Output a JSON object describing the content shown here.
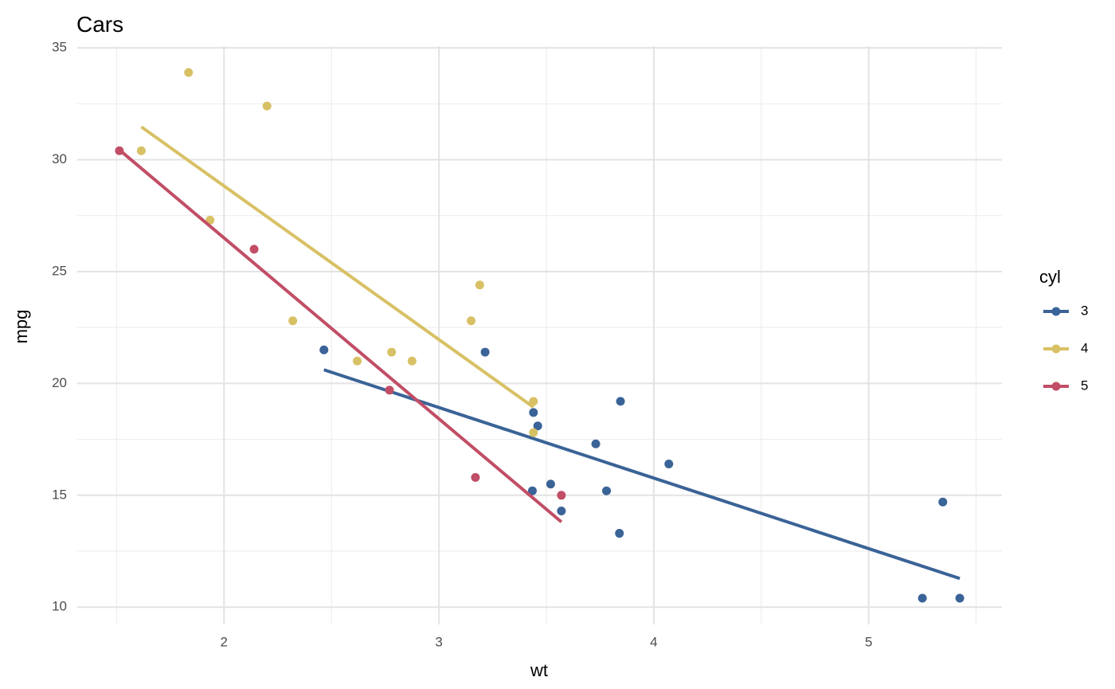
{
  "chart_data": {
    "type": "scatter",
    "title": "Cars",
    "x_label": "wt",
    "y_label": "mpg",
    "legend_title": "cyl",
    "legend_position": "right",
    "grid": true,
    "xlim": [
      1.317,
      5.62
    ],
    "ylim": [
      9.225,
      35.075
    ],
    "xticks": [
      2,
      3,
      4,
      5
    ],
    "yticks": [
      10,
      15,
      20,
      25,
      30,
      35
    ],
    "xminorticks": [
      1.5,
      2.5,
      3.5,
      4.5,
      5.5
    ],
    "yminorticks": [
      12.5,
      17.5,
      22.5,
      27.5,
      32.5
    ],
    "series": [
      {
        "name": "3",
        "color": "#3a6397",
        "x": [
          3.215,
          3.44,
          3.46,
          3.57,
          4.07,
          3.73,
          3.78,
          5.25,
          5.424,
          5.345,
          2.465,
          3.52,
          3.435,
          3.84,
          3.845
        ],
        "values": [
          21.4,
          18.7,
          18.1,
          14.3,
          16.4,
          17.3,
          15.2,
          10.4,
          10.4,
          14.7,
          21.5,
          15.5,
          15.2,
          13.3,
          19.2
        ],
        "fit": {
          "x": [
            2.465,
            5.424
          ],
          "values": [
            20.61,
            11.28
          ]
        }
      },
      {
        "name": "4",
        "color": "#d8c165",
        "x": [
          2.62,
          2.875,
          2.32,
          3.19,
          3.15,
          3.44,
          3.44,
          2.2,
          1.615,
          1.835,
          1.935,
          2.78
        ],
        "values": [
          21,
          21,
          22.8,
          24.4,
          22.8,
          19.2,
          17.8,
          32.4,
          30.4,
          33.9,
          27.3,
          21.4
        ],
        "fit": {
          "x": [
            1.615,
            3.44
          ],
          "values": [
            31.47,
            18.94
          ]
        }
      },
      {
        "name": "5",
        "color": "#c14e66",
        "x": [
          2.14,
          1.513,
          3.17,
          2.77,
          3.57
        ],
        "values": [
          26,
          30.4,
          15.8,
          19.7,
          15
        ],
        "fit": {
          "x": [
            1.513,
            3.57
          ],
          "values": [
            30.44,
            13.81
          ]
        }
      }
    ]
  }
}
